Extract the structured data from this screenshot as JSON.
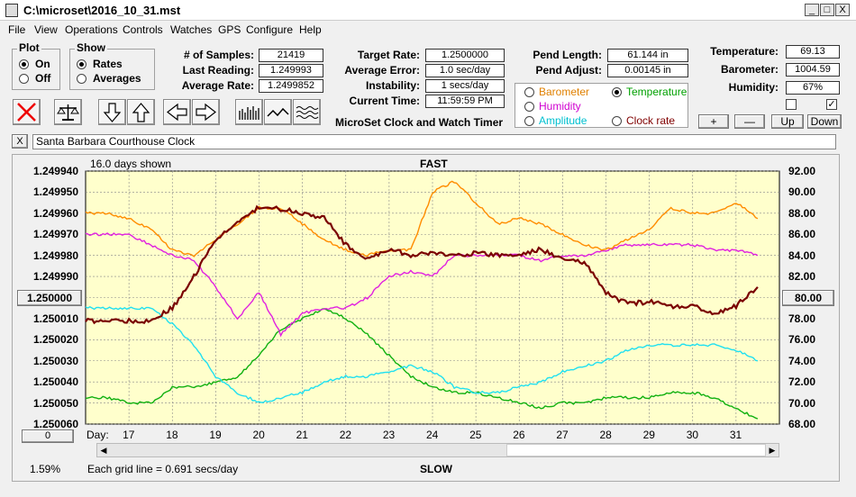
{
  "window": {
    "title": "C:\\microset\\2016_10_31.mst",
    "min": "_",
    "max": "□",
    "close": "X"
  },
  "menu": [
    "File",
    "View",
    "Operations",
    "Controls",
    "Watches",
    "GPS",
    "Configure",
    "Help"
  ],
  "plot_group": {
    "title": "Plot",
    "on": "On",
    "off": "Off"
  },
  "show_group": {
    "title": "Show",
    "rates": "Rates",
    "averages": "Averages"
  },
  "stats": {
    "samples_label": "# of Samples:",
    "samples": "21419",
    "last_label": "Last Reading:",
    "last": "1.249993",
    "avg_label": "Average Rate:",
    "avg": "1.2499852",
    "target_label": "Target Rate:",
    "target": "1.2500000",
    "err_label": "Average Error:",
    "err": "1.0 sec/day",
    "instab_label": "Instability:",
    "instab": "1 secs/day",
    "time_label": "Current Time:",
    "time": "11:59:59 PM",
    "pend_len_label": "Pend Length:",
    "pend_len": "61.144 in",
    "pend_adj_label": "Pend Adjust:",
    "pend_adj": "0.00145 in",
    "temp_label": "Temperature:",
    "temp": "69.13",
    "baro_label": "Barometer:",
    "baro": "1004.59",
    "hum_label": "Humidity:",
    "hum": "67%"
  },
  "app_name": "MicroSet Clock and Watch Timer",
  "sensor_options": {
    "barometer": "Barometer",
    "temperature": "Temperature",
    "humidity": "Humidity",
    "amplitude": "Amplitude",
    "clockrate": "Clock rate"
  },
  "adjust_buttons": {
    "plus": "+",
    "minus": "—",
    "up": "Up",
    "down": "Down"
  },
  "description": {
    "close": "X",
    "text": "Santa Barbara Courthouse Clock"
  },
  "plot": {
    "days_shown": "16.0 days shown",
    "fast": "FAST",
    "slow": "SLOW",
    "day_label": "Day:",
    "grid_note": "Each grid line = 0.691 secs/day",
    "percent": "1.59%",
    "center_btn": "1.250000",
    "right_btn": "80.00",
    "scroll_btn": "0",
    "left_ticks": [
      "1.249940",
      "1.249950",
      "1.249960",
      "1.249970",
      "1.249980",
      "1.249990",
      "",
      "1.250010",
      "1.250020",
      "1.250030",
      "1.250040",
      "1.250050",
      "1.250060"
    ],
    "right_ticks": [
      "92.00",
      "90.00",
      "88.00",
      "86.00",
      "84.00",
      "82.00",
      "",
      "78.00",
      "76.00",
      "74.00",
      "72.00",
      "70.00",
      "68.00"
    ],
    "day_ticks": [
      "17",
      "18",
      "19",
      "20",
      "21",
      "22",
      "23",
      "24",
      "25",
      "26",
      "27",
      "28",
      "29",
      "30",
      "31"
    ],
    "colors": {
      "bg": "#ffffcc",
      "grid": "#888888",
      "rate": "#7a0000",
      "barometer": "#ff8c00",
      "humidity": "#e020e0",
      "amplitude": "#20e0f0",
      "temperature": "#10b010"
    }
  },
  "chart_data": {
    "type": "line",
    "x": [
      16.0,
      16.5,
      17.0,
      17.5,
      18.0,
      18.5,
      19.0,
      19.5,
      20.0,
      20.5,
      21.0,
      21.5,
      22.0,
      22.5,
      23.0,
      23.5,
      24.0,
      24.5,
      25.0,
      25.5,
      26.0,
      26.5,
      27.0,
      27.5,
      28.0,
      28.5,
      29.0,
      29.5,
      30.0,
      30.5,
      31.0,
      31.5
    ],
    "xlim": [
      16.0,
      32.0
    ],
    "ylim_left": [
      1.24994,
      1.25006
    ],
    "ylim_right": [
      68,
      92
    ],
    "series": [
      {
        "name": "Rate",
        "axis": "left",
        "values": [
          1.250011,
          1.250011,
          1.250011,
          1.250011,
          1.250005,
          1.24999,
          1.249972,
          1.249965,
          1.249957,
          1.249958,
          1.24996,
          1.249962,
          1.249975,
          1.249982,
          1.249977,
          1.24998,
          1.249979,
          1.24998,
          1.249979,
          1.24998,
          1.24998,
          1.249977,
          1.249982,
          1.249983,
          1.249998,
          1.250003,
          1.250002,
          1.250004,
          1.250004,
          1.250008,
          1.250004,
          1.249995
        ]
      },
      {
        "name": "Barometer",
        "axis": "right",
        "values": [
          88.0,
          88.0,
          87.5,
          86.5,
          84.5,
          84.0,
          85.5,
          87.0,
          88.5,
          88.5,
          87.0,
          85.5,
          84.5,
          84.0,
          84.5,
          84.5,
          90.0,
          91.0,
          89.0,
          87.0,
          87.5,
          87.0,
          86.0,
          85.0,
          84.5,
          85.5,
          86.5,
          88.5,
          88.0,
          88.0,
          89.0,
          87.5
        ]
      },
      {
        "name": "Humidity",
        "axis": "right",
        "values": [
          86.0,
          86.0,
          86.0,
          85.0,
          84.0,
          83.5,
          81.0,
          78.0,
          80.5,
          76.5,
          78.5,
          79.0,
          79.0,
          80.0,
          82.0,
          82.5,
          82.0,
          84.0,
          84.0,
          84.0,
          84.0,
          83.5,
          84.0,
          84.0,
          84.5,
          85.0,
          85.0,
          85.0,
          85.0,
          84.5,
          84.5,
          84.0
        ]
      },
      {
        "name": "Amplitude",
        "axis": "right",
        "values": [
          79.0,
          79.0,
          79.0,
          79.0,
          77.5,
          75.5,
          72.5,
          71.0,
          70.0,
          70.5,
          71.0,
          72.0,
          72.5,
          72.5,
          73.0,
          73.5,
          73.0,
          71.5,
          71.0,
          71.0,
          71.5,
          72.0,
          73.0,
          73.5,
          74.0,
          75.0,
          75.5,
          75.5,
          75.5,
          75.5,
          75.0,
          74.0
        ]
      },
      {
        "name": "Temperature",
        "axis": "right",
        "values": [
          70.5,
          70.5,
          70.0,
          70.0,
          71.5,
          71.5,
          72.0,
          72.5,
          74.5,
          77.0,
          78.0,
          79.0,
          78.0,
          76.5,
          74.5,
          72.5,
          71.5,
          71.0,
          71.0,
          70.5,
          70.0,
          69.5,
          70.0,
          70.0,
          70.5,
          70.5,
          70.5,
          71.0,
          71.0,
          70.5,
          69.5,
          68.5
        ]
      }
    ]
  }
}
